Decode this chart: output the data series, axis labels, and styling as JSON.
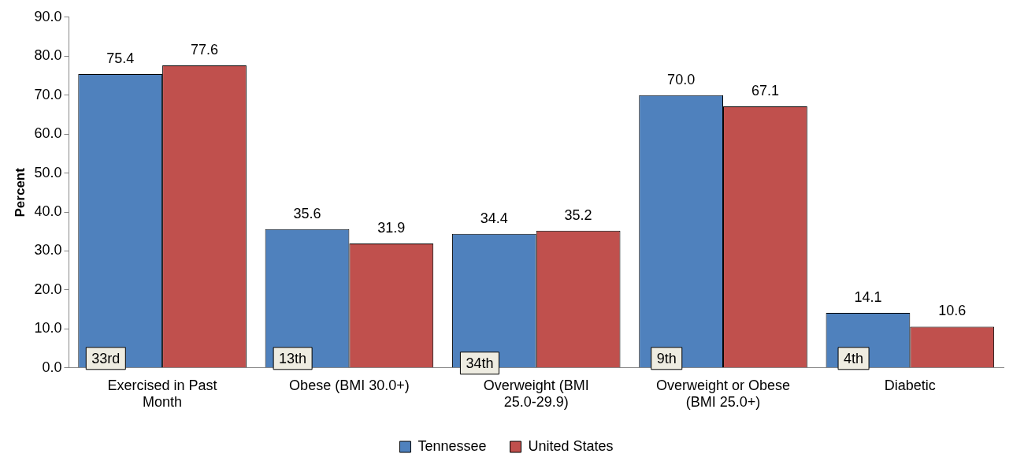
{
  "chart_data": {
    "type": "bar",
    "ylabel": "Percent",
    "categories": [
      "Exercised in Past Month",
      "Obese (BMI 30.0+)",
      "Overweight (BMI 25.0-29.9)",
      "Overweight or Obese (BMI 25.0+)",
      "Diabetic"
    ],
    "series": [
      {
        "name": "Tennessee",
        "color": "#4f81bd",
        "values": [
          75.4,
          35.6,
          34.4,
          70.0,
          14.1
        ],
        "value_labels": [
          "75.4",
          "35.6",
          "34.4",
          "70.0",
          "14.1"
        ]
      },
      {
        "name": "United States",
        "color": "#c0504d",
        "values": [
          77.6,
          31.9,
          35.2,
          67.1,
          10.6
        ],
        "value_labels": [
          "77.6",
          "31.9",
          "35.2",
          "67.1",
          "10.6"
        ]
      }
    ],
    "ylim": [
      0,
      90
    ],
    "yticks": [
      {
        "value": 0,
        "label": "0.0"
      },
      {
        "value": 10,
        "label": "10.0"
      },
      {
        "value": 20,
        "label": "20.0"
      },
      {
        "value": 30,
        "label": "30.0"
      },
      {
        "value": 40,
        "label": "40.0"
      },
      {
        "value": 50,
        "label": "50.0"
      },
      {
        "value": 60,
        "label": "60.0"
      },
      {
        "value": 70,
        "label": "70.0"
      },
      {
        "value": 80,
        "label": "80.0"
      },
      {
        "value": 90,
        "label": "90.0"
      }
    ],
    "grid": false,
    "legend": "bottom",
    "annotations": [
      "33rd",
      "13th",
      "34th",
      "9th",
      "4th"
    ]
  }
}
